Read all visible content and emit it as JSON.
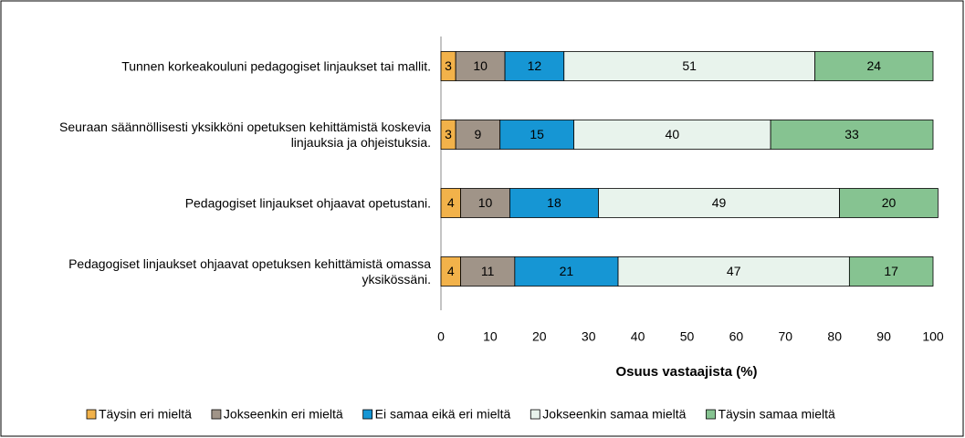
{
  "chart_data": {
    "type": "stacked_bar_horizontal",
    "categories": [
      "Tunnen korkeakouluni pedagogiset linjaukset tai mallit.",
      "Seuraan säännöllisesti yksikköni opetuksen kehittämistä koskevia linjauksia ja ohjeistuksia.",
      "Pedagogiset linjaukset ohjaavat opetustani.",
      "Pedagogiset linjaukset ohjaavat opetuksen kehittämistä omassa yksikössäni."
    ],
    "series": [
      {
        "name": "Täysin eri mieltä",
        "color": "#f2b24a",
        "values": [
          3,
          3,
          4,
          4
        ]
      },
      {
        "name": "Jokseenkin eri mieltä",
        "color": "#a09488",
        "values": [
          10,
          9,
          10,
          11
        ]
      },
      {
        "name": "Ei samaa eikä eri mieltä",
        "color": "#1696d4",
        "values": [
          12,
          15,
          18,
          21
        ]
      },
      {
        "name": "Jokseenkin samaa mieltä",
        "color": "#e8f3ec",
        "values": [
          51,
          40,
          49,
          47
        ]
      },
      {
        "name": "Täysin samaa mieltä",
        "color": "#86c391",
        "values": [
          24,
          33,
          20,
          17
        ]
      }
    ],
    "xlabel": "Osuus vastaajista (%)",
    "xlim": [
      0,
      100
    ],
    "xticks": [
      0,
      10,
      20,
      30,
      40,
      50,
      60,
      70,
      80,
      90,
      100
    ],
    "grid": false,
    "legend": "bottom"
  }
}
